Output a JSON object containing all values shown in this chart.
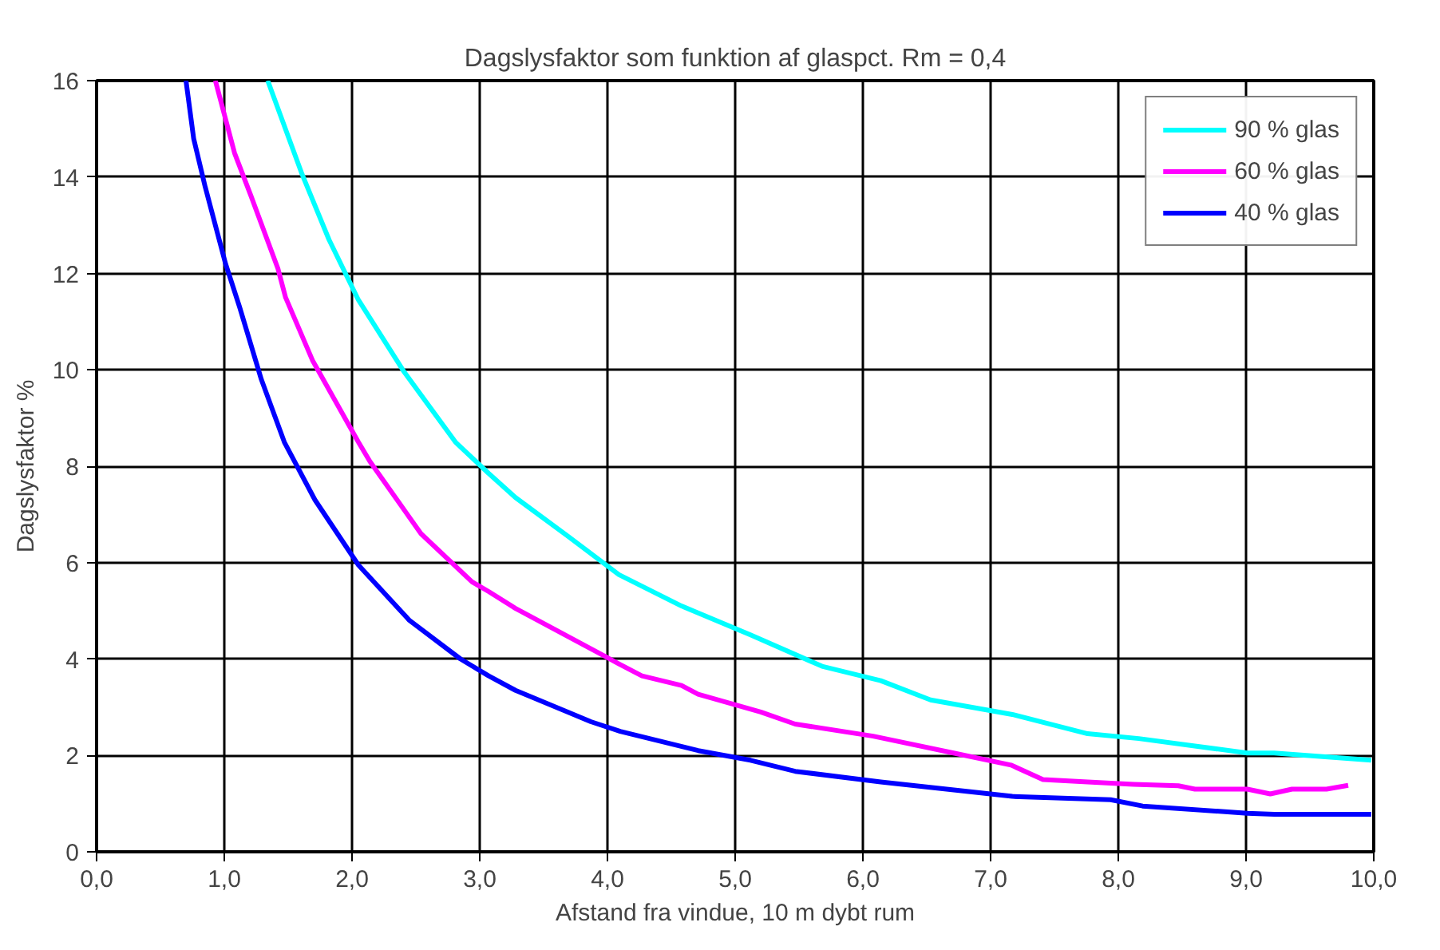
{
  "chart_data": {
    "type": "line",
    "title": "Dagslysfaktor som funktion af glaspct. Rm = 0,4",
    "xlabel": "Afstand fra vindue, 10 m dybt rum",
    "ylabel": "Dagslysfaktor %",
    "xlim": [
      0,
      10
    ],
    "ylim": [
      0,
      16
    ],
    "xticks": [
      {
        "value": 0,
        "label": "0,0"
      },
      {
        "value": 1,
        "label": "1,0"
      },
      {
        "value": 2,
        "label": "2,0"
      },
      {
        "value": 3,
        "label": "3,0"
      },
      {
        "value": 4,
        "label": "4,0"
      },
      {
        "value": 5,
        "label": "5,0"
      },
      {
        "value": 6,
        "label": "6,0"
      },
      {
        "value": 7,
        "label": "7,0"
      },
      {
        "value": 8,
        "label": "8,0"
      },
      {
        "value": 9,
        "label": "9,0"
      },
      {
        "value": 10,
        "label": "10,0"
      }
    ],
    "yticks": [
      0,
      2,
      4,
      6,
      8,
      10,
      12,
      14,
      16
    ],
    "grid": true,
    "legend": "top right",
    "line_style": "solid",
    "marker": "none",
    "series": [
      {
        "name": "90 % glas",
        "color": "#00ffff",
        "x": [
          1.34,
          1.61,
          1.82,
          2.05,
          2.41,
          2.81,
          3.07,
          3.28,
          3.69,
          4.09,
          4.58,
          5.12,
          5.68,
          6.14,
          6.53,
          7.17,
          7.76,
          8.16,
          9.01,
          9.22,
          9.98
        ],
        "values": [
          16,
          14.05,
          12.7,
          11.45,
          9.95,
          8.5,
          7.85,
          7.35,
          6.55,
          5.75,
          5.1,
          4.5,
          3.85,
          3.55,
          3.15,
          2.85,
          2.45,
          2.35,
          2.05,
          2.05,
          1.9
        ]
      },
      {
        "name": "60 % glas",
        "color": "#ff00ff",
        "x": [
          0.93,
          1.08,
          1.21,
          1.42,
          1.48,
          1.69,
          2.05,
          2.14,
          2.54,
          2.94,
          3.07,
          3.28,
          4.09,
          4.27,
          4.58,
          4.71,
          5.2,
          5.47,
          6.08,
          6.71,
          7.16,
          7.41,
          7.76,
          8.12,
          8.47,
          8.6,
          9.01,
          9.19,
          9.36,
          9.63,
          9.8
        ],
        "values": [
          16,
          14.5,
          13.6,
          12.1,
          11.5,
          10.2,
          8.5,
          8.1,
          6.6,
          5.6,
          5.4,
          5.05,
          3.9,
          3.65,
          3.45,
          3.27,
          2.9,
          2.65,
          2.4,
          2.05,
          1.8,
          1.5,
          1.45,
          1.4,
          1.37,
          1.3,
          1.3,
          1.2,
          1.3,
          1.3,
          1.38
        ]
      },
      {
        "name": "40 % glas",
        "color": "#0000ff",
        "x": [
          0.7,
          0.76,
          0.85,
          1.01,
          1.12,
          1.29,
          1.47,
          1.71,
          2.05,
          2.45,
          2.85,
          3.07,
          3.28,
          3.69,
          3.87,
          4.1,
          4.71,
          5.12,
          5.47,
          6.14,
          7.17,
          7.94,
          8.19,
          9.01,
          9.22,
          9.98
        ],
        "values": [
          16,
          14.8,
          13.8,
          12.2,
          11.3,
          9.8,
          8.5,
          7.3,
          5.95,
          4.8,
          4.0,
          3.65,
          3.35,
          2.9,
          2.7,
          2.5,
          2.1,
          1.9,
          1.67,
          1.45,
          1.15,
          1.08,
          0.95,
          0.8,
          0.78,
          0.78
        ]
      }
    ]
  }
}
